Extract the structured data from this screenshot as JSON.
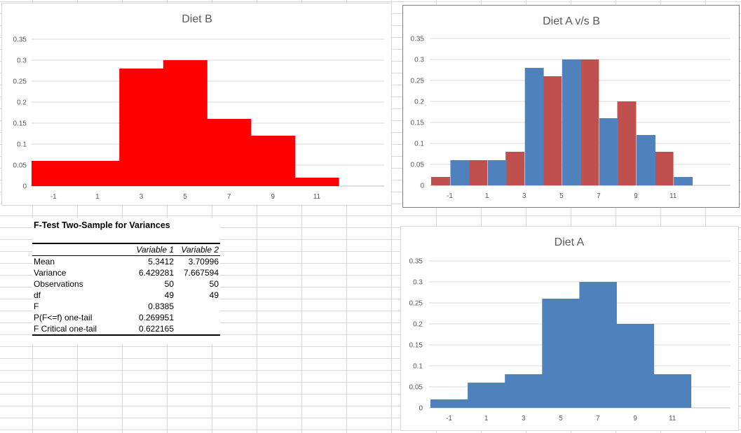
{
  "charts": [
    {
      "id": "diet-b",
      "title": "Diet B",
      "type": "bar",
      "x_ticks": [
        "-1",
        "1",
        "3",
        "5",
        "7",
        "9",
        "11"
      ],
      "y_ticks": [
        "0",
        "0.05",
        "0.1",
        "0.15",
        "0.2",
        "0.25",
        "0.3",
        "0.35"
      ],
      "ylim": [
        0,
        0.35
      ],
      "gridlines": true,
      "series": [
        {
          "color": "#ff0000",
          "values": [
            0.06,
            0.06,
            0.28,
            0.3,
            0.16,
            0.12,
            0.02
          ]
        }
      ]
    },
    {
      "id": "diet-a-vs-b",
      "title": "Diet A v/s B",
      "type": "bar",
      "x_ticks": [
        "-1",
        "1",
        "3",
        "5",
        "7",
        "9",
        "11"
      ],
      "y_ticks": [
        "0",
        "0.05",
        "0.1",
        "0.15",
        "0.2",
        "0.25",
        "0.3",
        "0.35"
      ],
      "ylim": [
        0,
        0.35
      ],
      "gridlines": true,
      "series": [
        {
          "color": "#c0504d",
          "values": [
            0.02,
            0.06,
            0.08,
            0.26,
            0.3,
            0.2,
            0.08
          ]
        },
        {
          "color": "#4f81bd",
          "values": [
            0.06,
            0.06,
            0.28,
            0.3,
            0.16,
            0.12,
            0.02
          ]
        }
      ]
    },
    {
      "id": "diet-a",
      "title": "Diet A",
      "type": "bar",
      "x_ticks": [
        "-1",
        "1",
        "3",
        "5",
        "7",
        "9",
        "11"
      ],
      "y_ticks": [
        "0",
        "0.05",
        "0.1",
        "0.15",
        "0.2",
        "0.25",
        "0.3",
        "0.35"
      ],
      "ylim": [
        0,
        0.35
      ],
      "gridlines": true,
      "series": [
        {
          "color": "#4f81bd",
          "values": [
            0.02,
            0.06,
            0.08,
            0.26,
            0.3,
            0.2,
            0.08
          ]
        }
      ]
    }
  ],
  "ftest": {
    "title": "F-Test Two-Sample for Variances",
    "headers": [
      "",
      "Variable 1",
      "Variable 2"
    ],
    "rows": [
      [
        "Mean",
        "5.3412",
        "3.70996"
      ],
      [
        "Variance",
        "6.429281",
        "7.667594"
      ],
      [
        "Observations",
        "50",
        "50"
      ],
      [
        "df",
        "49",
        "49"
      ],
      [
        "F",
        "0.8385",
        ""
      ],
      [
        "P(F<=f) one-tail",
        "0.269951",
        ""
      ],
      [
        "F Critical one-tail",
        "0.622165",
        ""
      ]
    ]
  }
}
